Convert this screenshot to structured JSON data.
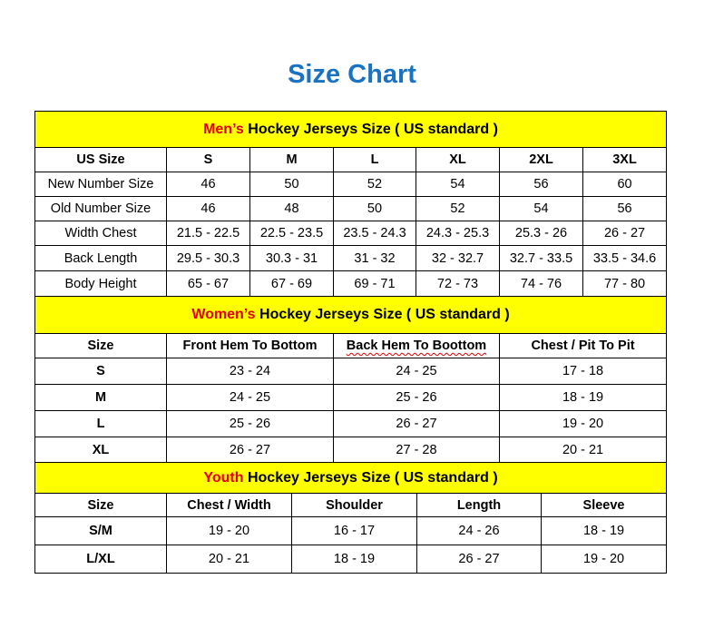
{
  "title": "Size Chart",
  "colors": {
    "title": "#1a72c0",
    "banner": "#ffff00",
    "highlight": "#e00000"
  },
  "sections": [
    {
      "id": "men",
      "highlight": "Men’s",
      "heading": " Hockey Jerseys Size ( US standard )",
      "headers": [
        "US Size",
        "S",
        "M",
        "L",
        "XL",
        "2XL",
        "3XL"
      ],
      "rows": [
        [
          "New Number Size",
          "46",
          "50",
          "52",
          "54",
          "56",
          "60"
        ],
        [
          "Old Number Size",
          "46",
          "48",
          "50",
          "52",
          "54",
          "56"
        ],
        [
          "Width Chest",
          "21.5 - 22.5",
          "22.5 - 23.5",
          "23.5 - 24.3",
          "24.3 - 25.3",
          "25.3 - 26",
          "26 - 27"
        ],
        [
          "Back Length",
          "29.5 - 30.3",
          "30.3 - 31",
          "31 - 32",
          "32 - 32.7",
          "32.7 - 33.5",
          "33.5 - 34.6"
        ],
        [
          "Body Height",
          "65 - 67",
          "67 - 69",
          "69 - 71",
          "72 - 73",
          "74 - 76",
          "77 - 80"
        ]
      ]
    },
    {
      "id": "women",
      "highlight": "Women’s",
      "heading": " Hockey Jerseys Size ( US standard )",
      "headers": [
        "Size",
        "Front Hem To Bottom",
        "Back Hem To Boottom",
        "Chest / Pit To Pit"
      ],
      "rows": [
        [
          "S",
          "23 - 24",
          "24 - 25",
          "17 - 18"
        ],
        [
          "M",
          "24 - 25",
          "25 - 26",
          "18 - 19"
        ],
        [
          "L",
          "25 - 26",
          "26 - 27",
          "19 - 20"
        ],
        [
          "XL",
          "26 - 27",
          "27 - 28",
          "20 - 21"
        ]
      ]
    },
    {
      "id": "youth",
      "highlight": "Youth",
      "heading": " Hockey Jerseys Size ( US standard )",
      "headers": [
        "Size",
        "Chest / Width",
        "Shoulder",
        "Length",
        "Sleeve"
      ],
      "rows": [
        [
          "S/M",
          "19 - 20",
          "16 - 17",
          "24 - 26",
          "18 - 19"
        ],
        [
          "L/XL",
          "20 - 21",
          "18 - 19",
          "26 - 27",
          "19 - 20"
        ]
      ]
    }
  ]
}
